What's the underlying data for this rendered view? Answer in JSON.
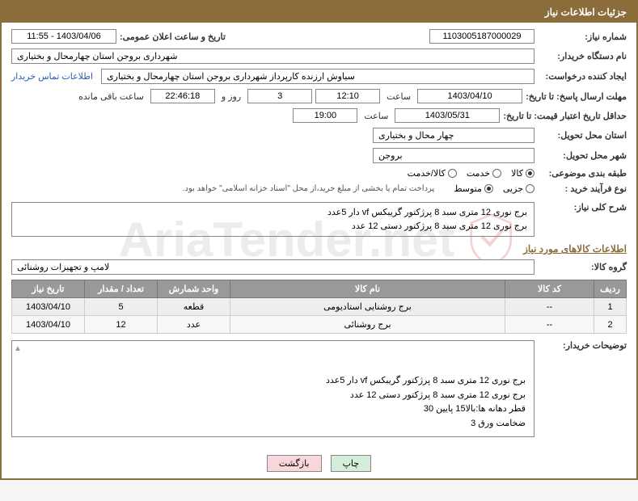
{
  "header": {
    "title": "جزئیات اطلاعات نیاز"
  },
  "fields": {
    "need_no_label": "شماره نیاز:",
    "need_no": "1103005187000029",
    "announce_label": "تاریخ و ساعت اعلان عمومی:",
    "announce": "1403/04/06 - 11:55",
    "buyer_org_label": "نام دستگاه خریدار:",
    "buyer_org": "شهرداری بروجن استان چهارمحال و بختیاری",
    "requester_label": "ایجاد کننده درخواست:",
    "requester": "سیاوش ارزنده کارپرداز شهرداری بروجن استان چهارمحال و بختیاری",
    "contact_link": "اطلاعات تماس خریدار",
    "deadline_label": "مهلت ارسال پاسخ: تا تاریخ:",
    "deadline_date": "1403/04/10",
    "time_word": "ساعت",
    "deadline_time": "12:10",
    "days_remaining": "3",
    "days_word": "روز و",
    "countdown": "22:46:18",
    "remaining_word": "ساعت باقی مانده",
    "validity_label": "حداقل تاریخ اعتبار قیمت: تا تاریخ:",
    "validity_date": "1403/05/31",
    "validity_time": "19:00",
    "province_label": "استان محل تحویل:",
    "province": "چهار محال و بختیاری",
    "city_label": "شهر محل تحویل:",
    "city": "بروجن",
    "class_label": "طبقه بندی موضوعی:",
    "class_opts": [
      "کالا",
      "خدمت",
      "کالا/خدمت"
    ],
    "class_selected": 0,
    "purchase_type_label": "نوع فرآیند خرید :",
    "purchase_opts": [
      "جزیی",
      "متوسط"
    ],
    "purchase_selected": 1,
    "purchase_note": "پرداخت تمام یا بخشی از مبلغ خرید،از محل \"اسناد خزانه اسلامی\" خواهد بود.",
    "summary_label": "شرح کلی نیاز:",
    "summary_text": "برج نوری 12 متری سبد 8 پرژکتور گریبکس vf دار  5عدد\nبرج نوری 12 متری سبد 8 پرژکتور دستی 12 عدد",
    "goods_section": "اطلاعات کالاهای مورد نیاز",
    "goods_group_label": "گروه کالا:",
    "goods_group": "لامپ و تجهیزات روشنائی",
    "buyer_desc_label": "توضیحات خریدار:",
    "buyer_desc": "برج نوری 12 متری سبد 8 پرژکتور گریبکس vf دار  5عدد\nبرج نوری 12 متری سبد 8 پرژکتور دستی 12 عدد\nقطر دهانه ها:بالا15 پایین 30\nضخامت ورق 3"
  },
  "table": {
    "headers": [
      "ردیف",
      "کد کالا",
      "نام کالا",
      "واحد شمارش",
      "تعداد / مقدار",
      "تاریخ نیاز"
    ],
    "rows": [
      [
        "1",
        "--",
        "برج روشنایی استادیومی",
        "قطعه",
        "5",
        "1403/04/10"
      ],
      [
        "2",
        "--",
        "برج روشنائی",
        "عدد",
        "12",
        "1403/04/10"
      ]
    ]
  },
  "buttons": {
    "print": "چاپ",
    "back": "بازگشت"
  },
  "watermark": "AriaTender.net",
  "colors": {
    "header_bg": "#8a6d3b",
    "link": "#2a5db0",
    "th_bg": "#999999"
  }
}
